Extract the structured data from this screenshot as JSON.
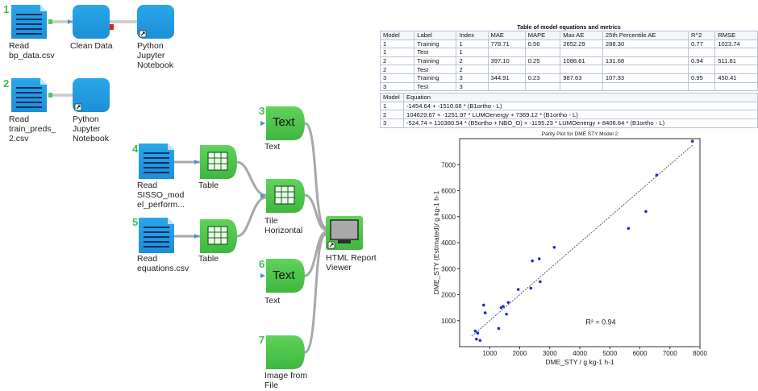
{
  "workflow": {
    "nodes": [
      {
        "id": "n1",
        "num": "1",
        "label": "Read\nbp_data.csv",
        "icon": "csv-reader-icon"
      },
      {
        "id": "n1b",
        "num": "",
        "label": "Clean Data",
        "icon": "metanode-icon"
      },
      {
        "id": "n1c",
        "num": "",
        "label": "Python\nJupyter\nNotebook",
        "icon": "metanode-icon"
      },
      {
        "id": "n2",
        "num": "2",
        "label": "Read\ntrain_preds_\n2.csv",
        "icon": "csv-reader-icon"
      },
      {
        "id": "n2b",
        "num": "",
        "label": "Python\nJupyter\nNotebook",
        "icon": "metanode-icon"
      },
      {
        "id": "n3",
        "num": "3",
        "label": "Text",
        "icon": "text-view-icon",
        "text": "Text"
      },
      {
        "id": "n4",
        "num": "4",
        "label": "Read\nSISSO_mod\nel_perform...",
        "icon": "csv-reader-icon"
      },
      {
        "id": "n4b",
        "num": "",
        "label": "Table",
        "icon": "table-view-icon"
      },
      {
        "id": "n5",
        "num": "5",
        "label": "Read\nequations.csv",
        "icon": "csv-reader-icon"
      },
      {
        "id": "n5b",
        "num": "",
        "label": "Table",
        "icon": "table-view-icon"
      },
      {
        "id": "nt",
        "num": "",
        "label": "Tile\nHorizontal",
        "icon": "tile-layout-icon"
      },
      {
        "id": "nh",
        "num": "",
        "label": "HTML Report\nViewer",
        "icon": "monitor-icon"
      },
      {
        "id": "n6",
        "num": "6",
        "label": "Text",
        "icon": "text-view-icon",
        "text": "Text"
      },
      {
        "id": "n7",
        "num": "7",
        "label": "Image from\nFile",
        "icon": "image-view-icon"
      }
    ]
  },
  "metrics_table": {
    "title": "Table of model equations and metrics",
    "headers": [
      "Model",
      "Label",
      "Index",
      "MAE",
      "MAPE",
      "Max AE",
      "25th Percentile AE",
      "R^2",
      "RMSE"
    ],
    "rows": [
      [
        "1",
        "Training",
        "1",
        "778.71",
        "0.56",
        "2652.29",
        "288.30",
        "0.77",
        "1023.74"
      ],
      [
        "1",
        "Test",
        "1",
        "",
        "",
        "",
        "",
        "",
        ""
      ],
      [
        "2",
        "Training",
        "2",
        "397.10",
        "0.25",
        "1088.61",
        "131.68",
        "0.94",
        "511.81"
      ],
      [
        "2",
        "Test",
        "2",
        "",
        "",
        "",
        "",
        "",
        ""
      ],
      [
        "3",
        "Training",
        "3",
        "344.91",
        "0.23",
        "987.63",
        "107.33",
        "0.95",
        "450.41"
      ],
      [
        "3",
        "Test",
        "3",
        "",
        "",
        "",
        "",
        "",
        ""
      ]
    ],
    "eq_headers": [
      "Model",
      "Equation"
    ],
    "eq_rows": [
      [
        "1",
        "-1454.64 + -1510.68 * (B1ortho - L)"
      ],
      [
        "2",
        "104629.67 + -1251.97 * LUMOenergy + 7369.12 * (B1ortho - L)"
      ],
      [
        "3",
        "-524.74 + 110380.54 * (B5ortho + NBO_O) + -1195.23 * LUMOenergy + 8406.64 * (B1ortho - L)"
      ]
    ]
  },
  "chart_data": {
    "type": "scatter",
    "title": "Parity Plot for DME STY Model 2",
    "xlabel": "DME_STY / g kg-1 h-1",
    "ylabel": "DME_STY (Estimated)/ g kg-1 h-1",
    "xlim": [
      0,
      8000
    ],
    "ylim": [
      0,
      8000
    ],
    "xticks": [
      1000,
      2000,
      3000,
      4000,
      5000,
      6000,
      7000,
      8000
    ],
    "yticks": [
      1000,
      2000,
      3000,
      4000,
      5000,
      6000,
      7000
    ],
    "annotation": "R² = 0.94",
    "point_color": "#1f2bd6",
    "x": [
      520,
      560,
      600,
      680,
      800,
      850,
      1300,
      1380,
      1450,
      1560,
      1620,
      1950,
      2370,
      2420,
      2650,
      2680,
      3150,
      5620,
      6200,
      6560,
      7750
    ],
    "y": [
      600,
      290,
      520,
      240,
      1600,
      1300,
      700,
      1500,
      1550,
      1250,
      1700,
      2200,
      2250,
      3300,
      3380,
      2500,
      3820,
      4550,
      5200,
      6600,
      7900
    ],
    "parity_line": [
      [
        400,
        400
      ],
      [
        7750,
        7750
      ]
    ]
  }
}
